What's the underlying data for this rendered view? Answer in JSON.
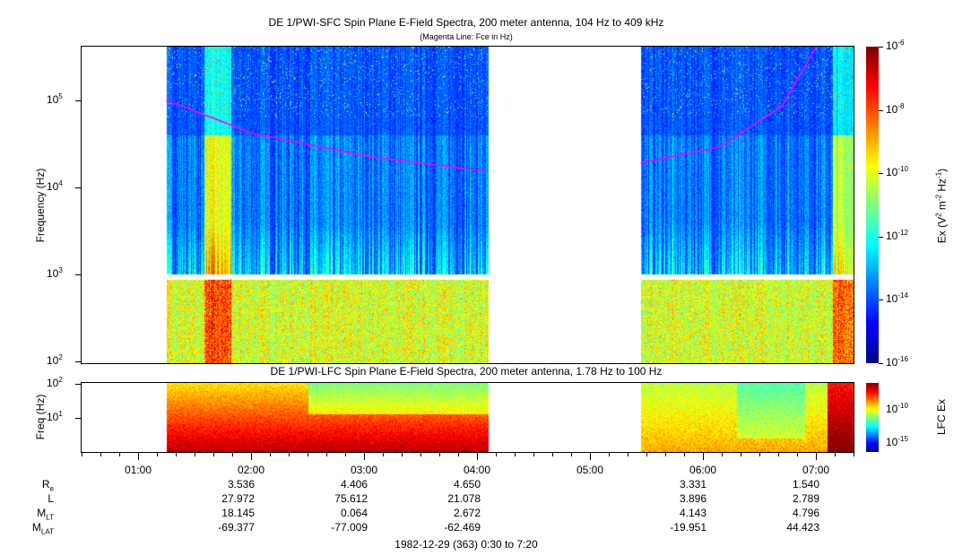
{
  "chart_data": [
    {
      "type": "heatmap",
      "title": "DE 1/PWI-SFC  Spin Plane E-Field Spectra, 200 meter antenna, 104 Hz to 409 kHz",
      "subtitle": "(Magenta Line: Fce in Hz)",
      "ylabel": "Frequency (Hz)",
      "yscale": "log",
      "ylim": [
        100,
        409000
      ],
      "yticks": [
        "10^2",
        "10^3",
        "10^4",
        "10^5"
      ],
      "data_intervals_hours": [
        [
          1.25,
          4.1
        ],
        [
          5.45,
          7.33
        ]
      ],
      "colorbar": {
        "label": "Ex (V^2 m^-2 Hz^-1)",
        "range": [
          1e-16,
          1e-06
        ],
        "ticks": [
          "-6",
          "-8",
          "-10",
          "-12",
          "-14",
          "-16"
        ]
      },
      "fce_line": {
        "color": "#ff00ff",
        "points": [
          [
            1.25,
            100000
          ],
          [
            2.0,
            42000
          ],
          [
            3.0,
            23000
          ],
          [
            4.1,
            15000
          ],
          [
            5.45,
            19000
          ],
          [
            6.15,
            29000
          ],
          [
            6.7,
            85000
          ],
          [
            7.0,
            400000
          ]
        ]
      }
    },
    {
      "type": "heatmap",
      "title": "DE 1/PWI-LFC  Spin Plane E-Field Spectra, 200 meter antenna, 1.78 Hz to 100 Hz",
      "ylabel": "Freq (Hz)",
      "yscale": "log",
      "ylim": [
        1.78,
        100
      ],
      "yticks": [
        "10^1",
        "10^2"
      ],
      "colorbar": {
        "label": "LFC Ex",
        "ticks": [
          "-10",
          "-15"
        ]
      }
    }
  ],
  "xaxis": {
    "ticks": [
      "01:00",
      "02:00",
      "03:00",
      "04:00",
      "05:00",
      "06:00",
      "07:00"
    ],
    "tick_hours": [
      1,
      2,
      3,
      4,
      5,
      6,
      7
    ],
    "range_hours": [
      0.5,
      7.333
    ],
    "caption": "1982-12-29 (363) 0:30 to 7:20"
  },
  "ephemeris": {
    "labels": [
      {
        "main": "R",
        "sub": "e"
      },
      {
        "main": "L",
        "sub": ""
      },
      {
        "main": "M",
        "sub": "LT"
      },
      {
        "main": "M",
        "sub": "LAT"
      }
    ],
    "columns": [
      {
        "hour": 2,
        "values": [
          "3.536",
          "27.972",
          "18.145",
          "-69.377"
        ]
      },
      {
        "hour": 3,
        "values": [
          "4.406",
          "75.612",
          "0.064",
          "-77.009"
        ]
      },
      {
        "hour": 4,
        "values": [
          "4.650",
          "21.078",
          "2.672",
          "-62.469"
        ]
      },
      {
        "hour": 6,
        "values": [
          "3.331",
          "3.896",
          "4.143",
          "-19.951"
        ]
      },
      {
        "hour": 7,
        "values": [
          "1.540",
          "2.789",
          "4.796",
          "44.423"
        ]
      }
    ]
  }
}
